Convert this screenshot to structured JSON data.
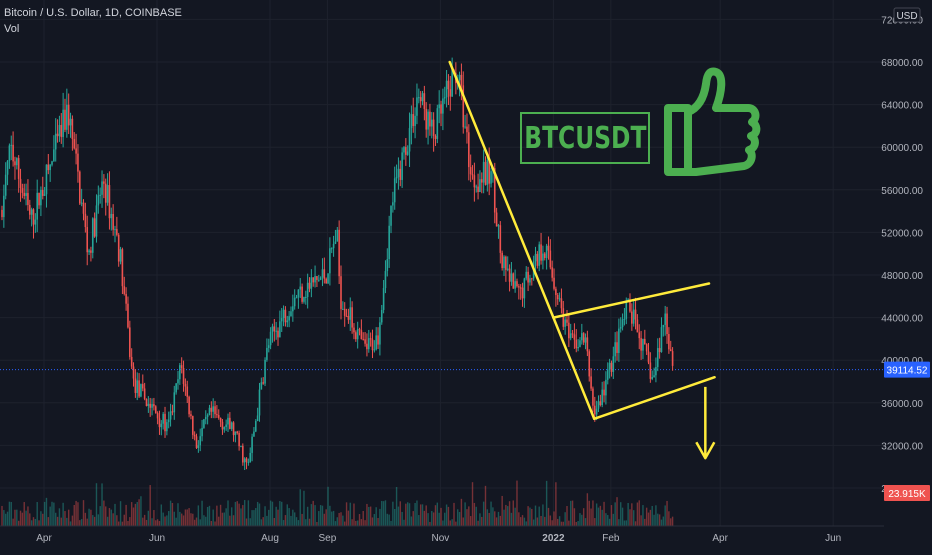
{
  "header": {
    "symbol_line": "Bitcoin / U.S. Dollar, 1D, COINBASE",
    "indicator": "Vol"
  },
  "axis": {
    "currency": "USD",
    "last_price_label": "39114.52",
    "volume_label": "23.915K"
  },
  "annotation": {
    "stamp_text": "BTCUSDT",
    "stamp_icon": "thumbs-up-icon"
  },
  "colors": {
    "background": "#131722",
    "up": "#26a69a",
    "down": "#ef5350",
    "drawing": "#ffeb3b",
    "stamp": "#4caf50",
    "price_marker": "#2962ff"
  },
  "chart_data": {
    "type": "candlestick",
    "ylim": [
      26000,
      73500
    ],
    "y_ticks": [
      "72000.00",
      "68000.00",
      "64000.00",
      "60000.00",
      "56000.00",
      "52000.00",
      "48000.00",
      "44000.00",
      "40000.00",
      "36000.00",
      "32000.00",
      "28000.00"
    ],
    "x_ticks": [
      "Apr",
      "Jun",
      "Aug",
      "Sep",
      "Nov",
      "2022",
      "Feb",
      "Apr",
      "Jun"
    ],
    "last_price": 39114.52,
    "price_path": [
      [
        "2021-02-25",
        47000
      ],
      [
        "2021-03-05",
        50000
      ],
      [
        "2021-03-14",
        60000
      ],
      [
        "2021-03-25",
        53000
      ],
      [
        "2021-04-05",
        58500
      ],
      [
        "2021-04-14",
        63500
      ],
      [
        "2021-04-25",
        50000
      ],
      [
        "2021-05-03",
        57000
      ],
      [
        "2021-05-12",
        50000
      ],
      [
        "2021-05-19",
        38000
      ],
      [
        "2021-05-25",
        36500
      ],
      [
        "2021-06-07",
        33500
      ],
      [
        "2021-06-14",
        39500
      ],
      [
        "2021-06-22",
        32000
      ],
      [
        "2021-06-30",
        35000
      ],
      [
        "2021-07-12",
        33500
      ],
      [
        "2021-07-20",
        29800
      ],
      [
        "2021-07-31",
        41500
      ],
      [
        "2021-08-14",
        46000
      ],
      [
        "2021-08-31",
        48000
      ],
      [
        "2021-09-06",
        52000
      ],
      [
        "2021-09-08",
        46000
      ],
      [
        "2021-09-21",
        41000
      ],
      [
        "2021-09-28",
        42000
      ],
      [
        "2021-10-06",
        55000
      ],
      [
        "2021-10-20",
        65000
      ],
      [
        "2021-10-28",
        61000
      ],
      [
        "2021-11-10",
        67500
      ],
      [
        "2021-11-18",
        57000
      ],
      [
        "2021-11-29",
        57500
      ],
      [
        "2021-12-04",
        49000
      ],
      [
        "2021-12-13",
        46000
      ],
      [
        "2021-12-27",
        51000
      ],
      [
        "2022-01-05",
        45000
      ],
      [
        "2022-01-10",
        41500
      ],
      [
        "2022-01-18",
        42000
      ],
      [
        "2022-01-23",
        35000
      ],
      [
        "2022-01-27",
        36500
      ],
      [
        "2022-02-10",
        45000
      ],
      [
        "2022-02-15",
        43000
      ],
      [
        "2022-02-24",
        38000
      ],
      [
        "2022-03-02",
        44500
      ],
      [
        "2022-03-07",
        39114.52
      ]
    ]
  }
}
